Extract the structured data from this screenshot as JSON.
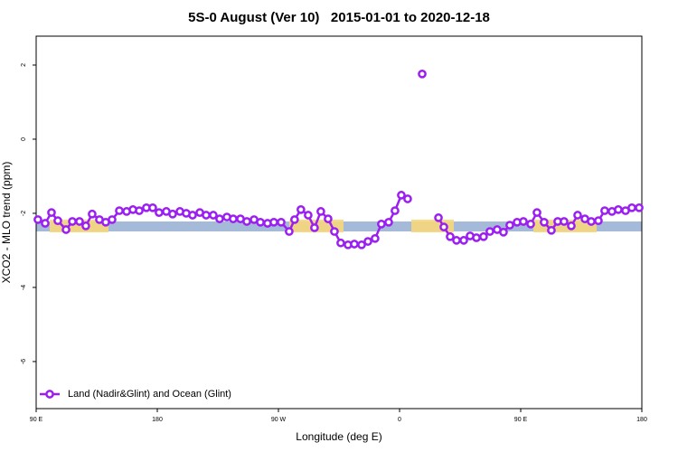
{
  "chart_data": {
    "type": "line",
    "title": "5S-0 August (Ver 10)   2015-01-01 to 2020-12-18",
    "x_label": "Longitude (deg E)",
    "y_label": "XCO2 - MLO trend (ppm)",
    "xlim": [
      90,
      540
    ],
    "ylim": [
      -7.27,
      2.78
    ],
    "xticks": [
      {
        "value": 90,
        "label": "90 E"
      },
      180,
      {
        "value": 270,
        "label": "90 W"
      },
      {
        "value": 360,
        "label": "0"
      },
      {
        "value": 450,
        "label": "90 E"
      },
      {
        "value": 540,
        "label": "180"
      }
    ],
    "yticks": [
      -6,
      -4,
      -2,
      0,
      2
    ],
    "legend": "bottom-left",
    "x": [
      91.3,
      96.7,
      101.4,
      106.1,
      112.2,
      116.9,
      122.2,
      126.9,
      131.6,
      137,
      141.7,
      146.4,
      151.8,
      157.2,
      161.9,
      166.6,
      171.9,
      176.6,
      181.3,
      186.7,
      191.4,
      196.8,
      201.5,
      206.2,
      211.6,
      216.3,
      221.6,
      226.3,
      231.7,
      236.4,
      241.8,
      246.5,
      251.9,
      256.6,
      261.9,
      266.6,
      272,
      278,
      282,
      286.7,
      292.1,
      296.8,
      301.5,
      306.9,
      311.6,
      316.3,
      321.7,
      326.4,
      331.8,
      336.5,
      341.8,
      346.5,
      351.9,
      356.6,
      361.3,
      366,
      371.4,
      376.8,
      382.8,
      388.9,
      392.9,
      397.6,
      402.3,
      407.7,
      412.4,
      417.1,
      422.4,
      427.1,
      432.5,
      437.2,
      441.9,
      447.3,
      452,
      457.4,
      462.1,
      467.4,
      472.8,
      477.5,
      482.2,
      487.6,
      492.3,
      497.7,
      502.4,
      507.7,
      512.4,
      517.8,
      522.5,
      527.9,
      532.6,
      538
    ],
    "series": [
      {
        "name": "Land (Nadir&Glint) and Ocean (Glint)",
        "color": "#9b1ff0",
        "values": [
          -2.17,
          -2.27,
          -1.98,
          -2.2,
          -2.44,
          -2.22,
          -2.22,
          -2.34,
          -2.02,
          -2.17,
          -2.24,
          -2.17,
          -1.93,
          -1.95,
          -1.9,
          -1.93,
          -1.85,
          -1.85,
          -1.98,
          -1.95,
          -2.02,
          -1.95,
          -2.0,
          -2.05,
          -1.98,
          -2.05,
          -2.05,
          -2.15,
          -2.1,
          -2.15,
          -2.15,
          -2.22,
          -2.17,
          -2.24,
          -2.27,
          -2.24,
          -2.24,
          -2.49,
          -2.17,
          -1.9,
          -2.05,
          -2.39,
          -1.95,
          -2.15,
          -2.49,
          -2.8,
          -2.85,
          -2.83,
          -2.85,
          -2.76,
          -2.68,
          -2.29,
          -2.24,
          -1.93,
          -1.51,
          -1.61,
          null,
          1.76,
          null,
          -2.12,
          -2.37,
          -2.63,
          -2.73,
          -2.73,
          -2.61,
          -2.66,
          -2.63,
          -2.49,
          -2.44,
          -2.51,
          -2.32,
          -2.24,
          -2.22,
          -2.29,
          -1.98,
          -2.24,
          -2.46,
          -2.22,
          -2.22,
          -2.34,
          -2.05,
          -2.15,
          -2.22,
          -2.2,
          -1.93,
          -1.95,
          -1.9,
          -1.93,
          -1.85,
          -1.85
        ]
      }
    ]
  }
}
